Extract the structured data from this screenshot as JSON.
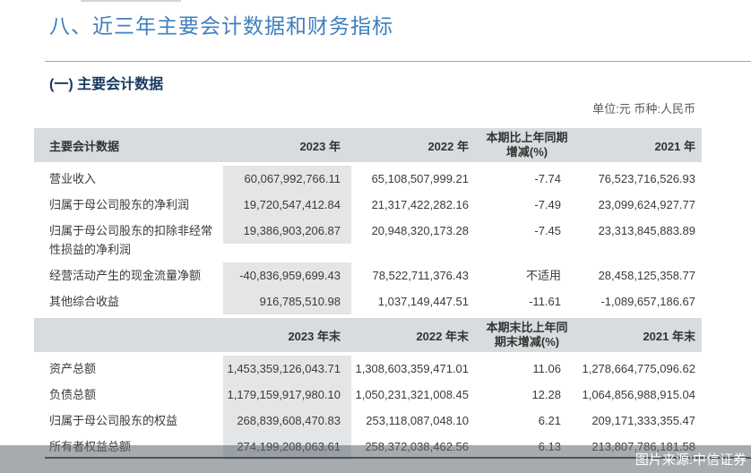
{
  "page": {
    "title": "八、近三年主要会计数据和财务指标",
    "section_heading": "(一) 主要会计数据",
    "unit_note": "单位:元 币种:人民币",
    "source_badge": "图片来源:中信证券"
  },
  "colors": {
    "title_blue": "#3f7fbe",
    "heading_navy": "#16395f",
    "header_bg": "#d9dcde",
    "shaded_column_bg": "#e3e5e7",
    "bottom_line_navy": "#26425e",
    "body_text": "#3a3a3a"
  },
  "table": {
    "section1": {
      "header": {
        "col1": "主要会计数据",
        "col2": "2023 年",
        "col3": "2022 年",
        "col4_line1": "本期比上年同期",
        "col4_line2": "增减(%)",
        "col5": "2021 年"
      },
      "rows": [
        {
          "label": "营业收入",
          "v2023": "60,067,992,766.11",
          "v2022": "65,108,507,999.21",
          "chg": "-7.74",
          "v2021": "76,523,716,526.93"
        },
        {
          "label": "归属于母公司股东的净利润",
          "v2023": "19,720,547,412.84",
          "v2022": "21,317,422,282.16",
          "chg": "-7.49",
          "v2021": "23,099,624,927.77"
        },
        {
          "label": "归属于母公司股东的扣除非经常性损益的净利润",
          "v2023": "19,386,903,206.87",
          "v2022": "20,948,320,173.28",
          "chg": "-7.45",
          "v2021": "23,313,845,883.89"
        },
        {
          "label": "经营活动产生的现金流量净额",
          "v2023": "-40,836,959,699.43",
          "v2022": "78,522,711,376.43",
          "chg": "不适用",
          "v2021": "28,458,125,358.77"
        },
        {
          "label": "其他综合收益",
          "v2023": "916,785,510.98",
          "v2022": "1,037,149,447.51",
          "chg": "-11.61",
          "v2021": "-1,089,657,186.67"
        }
      ]
    },
    "section2": {
      "header": {
        "col1": "",
        "col2": "2023 年末",
        "col3": "2022 年末",
        "col4_line1": "本期末比上年同",
        "col4_line2": "期末增减(%)",
        "col5": "2021 年末"
      },
      "rows": [
        {
          "label": "资产总额",
          "v2023": "1,453,359,126,043.71",
          "v2022": "1,308,603,359,471.01",
          "chg": "11.06",
          "v2021": "1,278,664,775,096.62"
        },
        {
          "label": "负债总额",
          "v2023": "1,179,159,917,980.10",
          "v2022": "1,050,231,321,008.45",
          "chg": "12.28",
          "v2021": "1,064,856,988,915.04"
        },
        {
          "label": "归属于母公司股东的权益",
          "v2023": "268,839,608,470.83",
          "v2022": "253,118,087,048.10",
          "chg": "6.21",
          "v2021": "209,171,333,355.47"
        },
        {
          "label": "所有者权益总额",
          "v2023": "274,199,208,063.61",
          "v2022": "258,372,038,462.56",
          "chg": "6.13",
          "v2021": "213,807,786,181.58"
        }
      ]
    }
  }
}
